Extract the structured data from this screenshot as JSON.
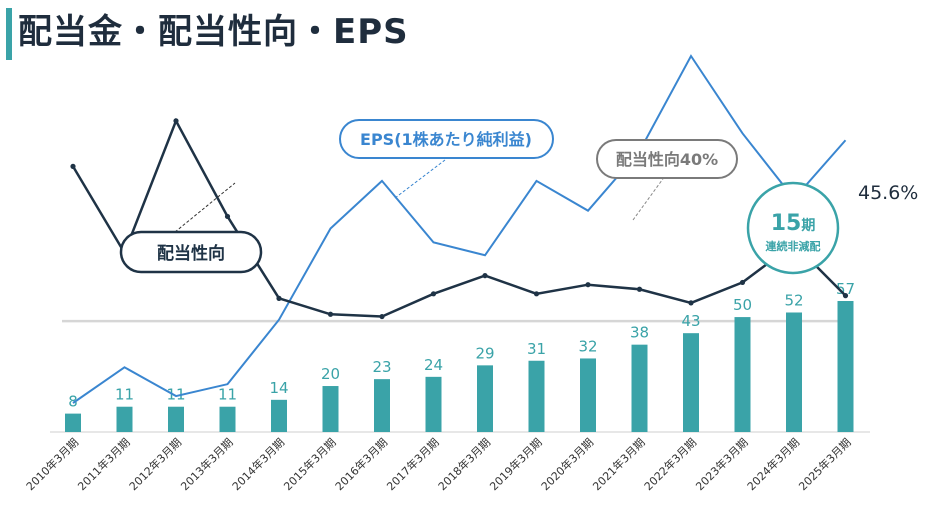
{
  "title": "配当金・配当性向・EPS",
  "colors": {
    "title_bar": "#3aa3a8",
    "bar": "#3aa3a8",
    "eps_line": "#3a86d0",
    "payout_line": "#1f3346",
    "ref_line": "#d6d6d6",
    "ratio_callout": "#7a7a7a"
  },
  "chart_data": {
    "type": "bar",
    "categories": [
      "2010年3月期",
      "2011年3月期",
      "2012年3月期",
      "2013年3月期",
      "2014年3月期",
      "2015年3月期",
      "2016年3月期",
      "2017年3月期",
      "2018年3月期",
      "2019年3月期",
      "2020年3月期",
      "2021年3月期",
      "2022年3月期",
      "2023年3月期",
      "2024年3月期",
      "2025年3月期"
    ],
    "series": [
      {
        "name": "配当金",
        "type": "bar",
        "values": [
          8,
          11,
          11,
          11,
          14,
          20,
          23,
          24,
          29,
          31,
          32,
          38,
          43,
          50,
          52,
          57
        ],
        "ylim": [
          0,
          60
        ]
      },
      {
        "name": "EPS(1株あたり純利益)",
        "type": "line",
        "values": [
          26,
          62,
          33,
          45,
          110,
          202,
          250,
          188,
          175,
          250,
          220,
          280,
          376,
          298,
          232,
          291
        ],
        "ylim": [
          0,
          400
        ]
      },
      {
        "name": "配当性向",
        "type": "line",
        "values": [
          74,
          55,
          84,
          63,
          45,
          41.5,
          41,
          46,
          50,
          46,
          48,
          47,
          44,
          48.5,
          57,
          45.6
        ],
        "ylim": [
          0,
          90
        ]
      }
    ],
    "reference_line": {
      "label": "配当性向40%",
      "value": 40
    },
    "end_value_label": "45.6%",
    "badge": {
      "number": "15",
      "unit": "期",
      "text": "連続非減配"
    },
    "callouts": {
      "eps": "EPS(1株あたり純利益)",
      "payout": "配当性向"
    }
  }
}
